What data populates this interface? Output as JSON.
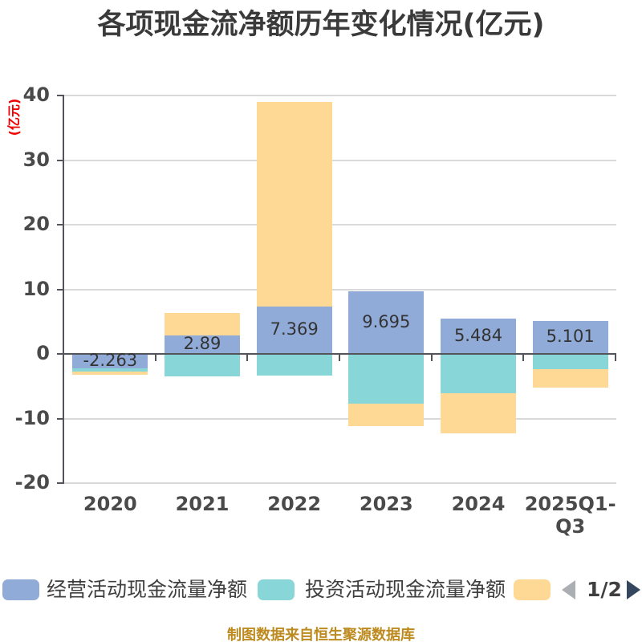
{
  "title": "各项现金流净额历年变化情况(亿元)",
  "y_axis": {
    "unit_label": "(亿元)",
    "unit_label_color": "#ee0000",
    "ticks": [
      "40",
      "30",
      "20",
      "10",
      "0",
      "-10",
      "-20"
    ]
  },
  "chart_data": {
    "type": "bar",
    "categories": [
      "2020",
      "2021",
      "2022",
      "2023",
      "2024",
      "2025Q1-Q3"
    ],
    "series": [
      {
        "name": "经营活动现金流量净额",
        "color": "#91abd9",
        "values": [
          -2.263,
          2.89,
          7.369,
          9.695,
          5.484,
          5.101
        ]
      },
      {
        "name": "投资活动现金流量净额",
        "color": "#89d6d9",
        "values": [
          -2.7,
          -3.5,
          -3.3,
          -7.7,
          -6.1,
          -2.4
        ]
      },
      {
        "name": "",
        "color": "#fed996",
        "values": [
          -3.2,
          6.3,
          39.0,
          -11.2,
          -12.3,
          -5.2
        ]
      }
    ],
    "bar_labels": [
      "-2.263",
      "2.89",
      "7.369",
      "9.695",
      "5.484",
      "5.101"
    ],
    "ylim": [
      -20,
      40
    ],
    "ytick_step": 10,
    "grid": true,
    "legend_position": "bottom"
  },
  "legend": {
    "items": [
      {
        "label": "经营活动现金流量净额",
        "color": "#91abd9"
      },
      {
        "label": "投资活动现金流量净额",
        "color": "#89d6d9"
      },
      {
        "label": "",
        "color": "#fed996"
      }
    ],
    "pagination": {
      "page": "1/2",
      "prev_icon": "left-arrow",
      "next_icon": "right-arrow"
    }
  },
  "footer": {
    "source": "制图数据来自恒生聚源数据库"
  }
}
